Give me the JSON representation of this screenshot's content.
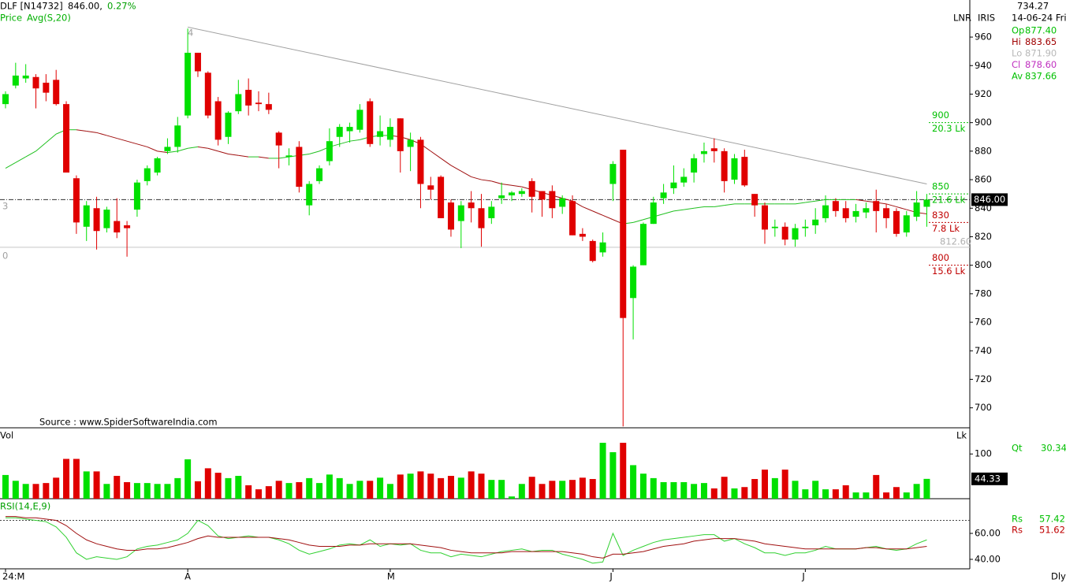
{
  "header": {
    "symbol": "DLF [N14732]",
    "price": "846.00,",
    "change": "0.27%",
    "legend_price": "Price",
    "legend_avg": "Avg(S,20)",
    "source": "Source : www.SpiderSoftwareIndia.com"
  },
  "axis_titles": {
    "price": "LNR",
    "info": "IRIS",
    "volume": "Lk",
    "period": "Dly"
  },
  "info_panel": {
    "top": "734.27",
    "date": "14-06-24 Fri",
    "rows": [
      {
        "label": "Op",
        "value": "877.40",
        "color": "#00c000"
      },
      {
        "label": "Hi",
        "value": "883.65",
        "color": "#a00000"
      },
      {
        "label": "Lo",
        "value": "871.90",
        "color": "#b8b8b8"
      },
      {
        "label": "Cl",
        "value": "878.60",
        "color": "#c030c0"
      },
      {
        "label": "Av",
        "value": "837.66",
        "color": "#00c000"
      }
    ],
    "qt": {
      "label": "Qt",
      "value": "30.34",
      "color": "#00c000"
    },
    "rs": [
      {
        "label": "Rs",
        "value": "57.42",
        "color": "#00c000"
      },
      {
        "label": "Rs",
        "value": "51.62",
        "color": "#c00000"
      }
    ]
  },
  "chart_data": [
    {
      "type": "candlestick",
      "up_color": "#00e000",
      "down_color": "#e00000",
      "open": [
        913,
        926,
        931,
        932,
        928,
        930,
        913,
        861,
        827,
        840,
        826,
        831,
        828,
        839,
        859,
        865,
        880,
        883,
        905,
        949,
        935,
        915,
        890,
        908,
        923,
        914,
        913,
        893,
        876,
        883,
        842,
        859,
        873,
        890,
        894,
        895,
        915,
        890,
        888,
        903,
        883,
        888,
        856,
        862,
        844,
        831,
        844,
        840,
        833,
        847,
        849,
        850,
        859,
        852,
        852,
        841,
        845,
        822,
        817,
        809,
        857,
        881,
        777,
        800,
        829,
        847,
        854,
        858,
        865,
        878,
        882,
        880,
        860,
        876,
        850,
        842,
        826,
        827,
        818,
        826,
        828,
        833,
        845,
        840,
        834,
        837,
        845,
        840,
        838,
        823,
        834,
        841
      ],
      "high": [
        922,
        942,
        941,
        934,
        934,
        937,
        915,
        863,
        845,
        848,
        841,
        847,
        831,
        860,
        870,
        876,
        889,
        904,
        966,
        949,
        936,
        918,
        908,
        930,
        931,
        922,
        921,
        894,
        882,
        887,
        859,
        870,
        896,
        899,
        900,
        913,
        917,
        905,
        903,
        903,
        893,
        890,
        862,
        863,
        846,
        845,
        852,
        850,
        845,
        858,
        852,
        854,
        861,
        852,
        856,
        849,
        849,
        826,
        818,
        823,
        873,
        881,
        800,
        830,
        848,
        857,
        870,
        868,
        878,
        886,
        889,
        882,
        878,
        881,
        850,
        844,
        832,
        830,
        829,
        832,
        840,
        849,
        847,
        845,
        843,
        844,
        853,
        843,
        840,
        838,
        852,
        850
      ],
      "low": [
        910,
        924,
        928,
        910,
        915,
        912,
        865,
        822,
        817,
        811,
        823,
        819,
        806,
        834,
        856,
        863,
        878,
        879,
        903,
        932,
        903,
        884,
        885,
        906,
        905,
        908,
        906,
        868,
        870,
        851,
        835,
        857,
        870,
        883,
        886,
        893,
        883,
        884,
        883,
        865,
        866,
        840,
        846,
        833,
        820,
        812,
        830,
        813,
        829,
        843,
        845,
        848,
        837,
        834,
        833,
        836,
        821,
        817,
        802,
        806,
        845,
        687,
        748,
        800,
        829,
        843,
        850,
        855,
        858,
        872,
        872,
        851,
        857,
        855,
        834,
        815,
        820,
        814,
        813,
        820,
        822,
        830,
        834,
        830,
        830,
        833,
        823,
        826,
        820,
        820,
        831,
        827
      ],
      "close": [
        920,
        933,
        933,
        924,
        921,
        913,
        865,
        830,
        842,
        824,
        839,
        823,
        826,
        858,
        868,
        875,
        883,
        898,
        949,
        936,
        905,
        888,
        907,
        920,
        912,
        913,
        909,
        884,
        877,
        855,
        857,
        868,
        887,
        897,
        897,
        909,
        885,
        894,
        897,
        880,
        888,
        857,
        853,
        833,
        825,
        842,
        840,
        826,
        841,
        849,
        851,
        852,
        848,
        846,
        840,
        847,
        821,
        820,
        803,
        816,
        871,
        763,
        799,
        829,
        844,
        851,
        858,
        862,
        875,
        880,
        880,
        859,
        875,
        856,
        842,
        825,
        827,
        818,
        826,
        827,
        832,
        842,
        838,
        833,
        838,
        840,
        838,
        833,
        822,
        835,
        844,
        846
      ],
      "ma": {
        "name": "Avg(S,20)",
        "up_color": "#20c020",
        "down_color": "#a01010",
        "values": [
          868,
          872,
          876,
          880,
          886,
          892,
          895,
          895,
          894,
          893,
          891,
          889,
          887,
          885,
          883,
          880,
          879,
          880,
          882,
          883,
          882,
          880,
          878,
          877,
          876,
          876,
          875,
          875,
          876,
          877,
          878,
          880,
          883,
          885,
          887,
          888,
          890,
          891,
          891,
          890,
          888,
          885,
          880,
          875,
          870,
          866,
          862,
          860,
          859,
          857,
          856,
          855,
          853,
          851,
          849,
          847,
          845,
          841,
          838,
          835,
          832,
          829,
          830,
          832,
          834,
          836,
          838,
          839,
          840,
          841,
          841,
          842,
          843,
          843,
          843,
          843,
          843,
          843,
          843,
          844,
          845,
          846,
          846,
          846,
          846,
          845,
          844,
          843,
          841,
          839,
          837,
          836
        ]
      },
      "ylim": [
        686,
        986
      ],
      "yticks": [
        700,
        720,
        740,
        760,
        780,
        800,
        820,
        840,
        860,
        880,
        900,
        920,
        940,
        960
      ],
      "current": {
        "value": 846,
        "label": "846.00"
      },
      "support": {
        "value": 812.6,
        "label": "812.60"
      },
      "trendline": {
        "x": [
          18,
          91
        ],
        "y": [
          967,
          857
        ],
        "color": "#a0a0a0"
      },
      "levels": [
        {
          "price": 900,
          "volume": "20.3 Lk",
          "color": "#00c000"
        },
        {
          "price": 850,
          "volume": "21.6 Lk",
          "color": "#00c000"
        },
        {
          "price": 830,
          "volume": "7.8 Lk",
          "color": "#c00000"
        },
        {
          "price": 800,
          "volume": "15.6 Lk",
          "color": "#c00000"
        }
      ],
      "annotations": [
        "4",
        "3",
        "0"
      ],
      "x_labels": [
        {
          "index": 0,
          "label": "24:M"
        },
        {
          "index": 18,
          "label": "A"
        },
        {
          "index": 38,
          "label": "M"
        },
        {
          "index": 60,
          "label": "J"
        },
        {
          "index": 79,
          "label": "J"
        }
      ]
    },
    {
      "type": "bar",
      "title": "Vol",
      "values": [
        53,
        40,
        33,
        33,
        35,
        47,
        89,
        89,
        61,
        61,
        33,
        51,
        37,
        35,
        35,
        33,
        33,
        46,
        88,
        39,
        68,
        58,
        46,
        51,
        30,
        21,
        28,
        40,
        35,
        37,
        46,
        35,
        54,
        46,
        33,
        40,
        40,
        47,
        33,
        54,
        56,
        61,
        56,
        46,
        51,
        47,
        61,
        56,
        42,
        42,
        5,
        33,
        49,
        33,
        40,
        40,
        42,
        47,
        44,
        125,
        104,
        125,
        75,
        56,
        46,
        37,
        37,
        37,
        33,
        35,
        23,
        49,
        23,
        26,
        44,
        65,
        46,
        65,
        40,
        21,
        40,
        21,
        21,
        30,
        14,
        14,
        53,
        14,
        26,
        14,
        33,
        44.33
      ],
      "ylim": [
        0,
        155
      ],
      "yticks": [
        100
      ]
    },
    {
      "type": "line",
      "title": "RSI(14,E,9)",
      "series": [
        {
          "color": "#30d030",
          "values": [
            72,
            72,
            71,
            70,
            69,
            65,
            57,
            45,
            40,
            42,
            41,
            40,
            42,
            48,
            50,
            51,
            53,
            55,
            60,
            70,
            66,
            58,
            56,
            57,
            58,
            57,
            57,
            55,
            52,
            47,
            44,
            46,
            48,
            51,
            52,
            51,
            55,
            50,
            52,
            51,
            52,
            47,
            45,
            45,
            42,
            44,
            43,
            42,
            44,
            46,
            47,
            48,
            46,
            47,
            47,
            44,
            42,
            40,
            37,
            38,
            60,
            43,
            47,
            50,
            53,
            55,
            56,
            57,
            58,
            59,
            59,
            54,
            56,
            52,
            49,
            45,
            45,
            43,
            45,
            45,
            47,
            50,
            48,
            48,
            48,
            49,
            50,
            48,
            47,
            48,
            52,
            55
          ]
        },
        {
          "color": "#a01010",
          "values": [
            73,
            73,
            72,
            72,
            71,
            70,
            66,
            60,
            55,
            52,
            50,
            48,
            47,
            47,
            48,
            48,
            49,
            51,
            53,
            56,
            58,
            57,
            57,
            57,
            57,
            57,
            57,
            56,
            55,
            53,
            51,
            50,
            50,
            50,
            51,
            51,
            52,
            52,
            52,
            52,
            52,
            51,
            50,
            49,
            47,
            46,
            45,
            45,
            45,
            45,
            46,
            46,
            46,
            46,
            46,
            46,
            45,
            44,
            42,
            41,
            44,
            44,
            45,
            46,
            48,
            50,
            51,
            52,
            54,
            55,
            56,
            56,
            56,
            55,
            54,
            52,
            51,
            50,
            49,
            48,
            48,
            48,
            48,
            48,
            48,
            49,
            49,
            48,
            48,
            48,
            49,
            50
          ]
        }
      ],
      "ylim": [
        32.7,
        85.5
      ],
      "yticks": [
        {
          "value": 60,
          "label": "60.00"
        },
        {
          "value": 40,
          "label": "40.00"
        }
      ],
      "hlines": [
        70
      ]
    }
  ]
}
